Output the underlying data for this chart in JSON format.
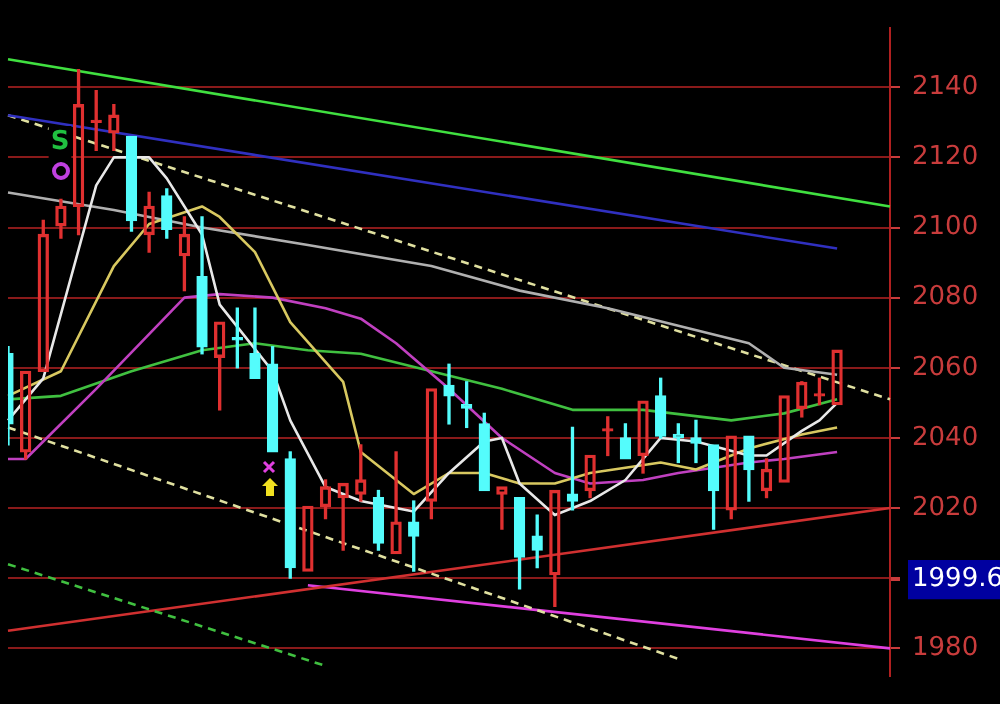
{
  "chart_data": {
    "type": "candlestick",
    "categories": [
      null,
      null,
      null,
      null,
      null,
      null,
      null,
      null,
      null,
      null,
      null,
      null,
      null,
      null,
      null,
      null,
      null,
      null,
      null,
      null,
      null,
      null,
      null,
      null,
      null,
      null,
      null,
      null,
      null,
      null,
      null,
      null,
      null,
      null,
      null,
      null,
      null,
      null,
      null,
      null,
      null,
      null,
      null,
      null,
      null,
      null,
      null,
      null,
      null,
      null,
      null
    ],
    "ohlc": [
      [
        2064,
        2066,
        2038,
        2044
      ],
      [
        2036,
        2059,
        2034,
        2059
      ],
      [
        2059,
        2102,
        2059,
        2098
      ],
      [
        2100.5,
        2108,
        2097,
        2106
      ],
      [
        2106,
        2145,
        2098,
        2135
      ],
      [
        2130,
        2139,
        2122,
        2130
      ],
      [
        2127,
        2135,
        2122,
        2132
      ],
      [
        2126,
        2126,
        2099,
        2102
      ],
      [
        2098,
        2110,
        2093,
        2106
      ],
      [
        2109,
        2111,
        2097,
        2099.5
      ],
      [
        2092,
        2103,
        2082,
        2098
      ],
      [
        2086,
        2103,
        2064,
        2066
      ],
      [
        2063,
        2073,
        2048,
        2073
      ],
      [
        2068,
        2077,
        2060,
        2068
      ],
      [
        2064,
        2077,
        2057,
        2057
      ],
      [
        2061,
        2066,
        2036,
        2036
      ],
      [
        2034,
        2036,
        2000,
        2003
      ],
      [
        2002,
        2020.5,
        2002,
        2020.5
      ],
      [
        2020.5,
        2028,
        2017,
        2026
      ],
      [
        2023,
        2027,
        2008,
        2027
      ],
      [
        2024,
        2038,
        2022,
        2028
      ],
      [
        2023,
        2025,
        2008,
        2010
      ],
      [
        2007,
        2036,
        2007,
        2016
      ],
      [
        2016,
        2022,
        2002,
        2012
      ],
      [
        2022,
        2054,
        2017,
        2054
      ],
      [
        2055,
        2061,
        2044,
        2052
      ],
      [
        2049.5,
        2056,
        2043,
        2048.5
      ],
      [
        2044,
        2047,
        2025,
        2025
      ],
      [
        2024,
        2026,
        2014,
        2026
      ],
      [
        2023,
        2023,
        1997,
        2006
      ],
      [
        2012,
        2018,
        2003,
        2008
      ],
      [
        2001,
        2025,
        1992,
        2025
      ],
      [
        2024,
        2043,
        2019.5,
        2022
      ],
      [
        2025,
        2035,
        2023,
        2035
      ],
      [
        2042,
        2046,
        2035,
        2042
      ],
      [
        2040,
        2044,
        2034,
        2034
      ],
      [
        2035,
        2050.5,
        2030,
        2050.5
      ],
      [
        2052,
        2057,
        2040,
        2040.5
      ],
      [
        2041,
        2044,
        2033,
        2040
      ],
      [
        2040,
        2045,
        2033,
        2038.5
      ],
      [
        2038,
        2038,
        2014,
        2025
      ],
      [
        2019.5,
        2040.5,
        2017,
        2040.5
      ],
      [
        2040.5,
        2040.5,
        2022,
        2031
      ],
      [
        2025,
        2034,
        2023,
        2031
      ],
      [
        2027.4,
        2052,
        2027.4,
        2052
      ],
      [
        2048.4,
        2056,
        2046,
        2055.8
      ],
      [
        2052,
        2057,
        2049.5,
        2052
      ],
      [
        2049.5,
        2065,
        2049.5,
        2065
      ],
      null,
      null,
      null
    ],
    "colors": [
      "#54fcfc",
      "#e03030",
      "#e03030",
      "#e03030",
      "#e03030",
      "#e03030",
      "#e03030",
      "#54fcfc",
      "#e03030",
      "#54fcfc",
      "#e03030",
      "#54fcfc",
      "#e03030",
      "#54fcfc",
      "#54fcfc",
      "#54fcfc",
      "#54fcfc",
      "#e03030",
      "#e03030",
      "#e03030",
      "#e03030",
      "#54fcfc",
      "#e03030",
      "#54fcfc",
      "#e03030",
      "#54fcfc",
      "#54fcfc",
      "#54fcfc",
      "#e03030",
      "#54fcfc",
      "#54fcfc",
      "#e03030",
      "#54fcfc",
      "#e03030",
      "#e03030",
      "#54fcfc",
      "#e03030",
      "#54fcfc",
      "#54fcfc",
      "#54fcfc",
      "#54fcfc",
      "#e03030",
      "#54fcfc",
      "#e03030",
      "#e03030",
      "#e03030",
      "#e03030",
      "#e03030",
      null,
      null,
      null
    ],
    "series": [
      {
        "type": "line",
        "color": "#e8e8e8",
        "values": [
          2045,
          null,
          2057,
          null,
          null,
          2112,
          2120,
          null,
          2120,
          2114,
          null,
          2098,
          2078,
          null,
          null,
          2059,
          2045,
          null,
          2026,
          null,
          2022,
          null,
          null,
          2019,
          null,
          2030,
          null,
          2039,
          2040,
          2027,
          null,
          2018,
          null,
          2022,
          null,
          2028,
          null,
          2040,
          null,
          2039,
          null,
          null,
          2035,
          2035,
          null,
          2042,
          2045,
          2050,
          null,
          null,
          null
        ]
      },
      {
        "type": "line",
        "color": "#d8c860",
        "values": [
          2052,
          null,
          null,
          2059,
          null,
          null,
          2089,
          null,
          2101,
          null,
          null,
          2106,
          2103,
          null,
          2093,
          null,
          2073,
          null,
          null,
          2056,
          2036,
          null,
          null,
          2024,
          null,
          2030,
          null,
          2030,
          null,
          2027,
          null,
          2027,
          null,
          2030,
          null,
          null,
          null,
          2033,
          null,
          2031,
          null,
          null,
          2037,
          null,
          null,
          2041,
          null,
          2043,
          null,
          null,
          null
        ]
      },
      {
        "type": "line",
        "color": "#c040c0",
        "values": [
          2034,
          2034,
          null,
          null,
          null,
          2054,
          null,
          null,
          null,
          null,
          2080,
          null,
          2081,
          null,
          null,
          2080,
          null,
          null,
          2077,
          null,
          2074,
          null,
          2067,
          null,
          null,
          2054,
          null,
          null,
          2040,
          null,
          null,
          2030,
          null,
          2027,
          null,
          null,
          2028,
          null,
          2030,
          null,
          null,
          null,
          2033,
          null,
          2034,
          null,
          null,
          2036,
          null,
          null,
          null
        ]
      },
      {
        "type": "line",
        "color": "#40c040",
        "values": [
          2051,
          null,
          null,
          2052,
          null,
          null,
          null,
          2059,
          null,
          null,
          null,
          2065,
          null,
          null,
          2067,
          null,
          null,
          2065,
          null,
          null,
          2064,
          null,
          null,
          null,
          2059,
          null,
          null,
          null,
          2054,
          null,
          null,
          null,
          2048,
          null,
          null,
          null,
          2048,
          null,
          null,
          null,
          null,
          2045,
          null,
          null,
          2047,
          null,
          null,
          2051,
          null,
          null,
          null
        ]
      },
      {
        "type": "line",
        "color": "#b0b0b0",
        "values": [
          2110,
          null,
          null,
          null,
          null,
          null,
          2105,
          null,
          null,
          null,
          null,
          2100,
          null,
          null,
          null,
          null,
          null,
          2095,
          null,
          null,
          null,
          null,
          null,
          null,
          2089,
          null,
          null,
          null,
          null,
          2082,
          null,
          null,
          null,
          null,
          2077,
          null,
          null,
          null,
          2072,
          null,
          null,
          null,
          2067,
          null,
          2060,
          null,
          null,
          2058,
          null,
          null,
          null
        ]
      },
      {
        "type": "line",
        "color": "#40e040",
        "values": [
          2148,
          null,
          null,
          null,
          null,
          null,
          null,
          null,
          null,
          null,
          null,
          null,
          null,
          null,
          null,
          null,
          null,
          null,
          null,
          null,
          null,
          null,
          null,
          null,
          null,
          null,
          null,
          null,
          null,
          null,
          null,
          null,
          null,
          null,
          null,
          null,
          null,
          null,
          null,
          null,
          null,
          null,
          null,
          null,
          null,
          null,
          null,
          null,
          null,
          null,
          2106
        ]
      },
      {
        "type": "line",
        "color": "#3030c0",
        "values": [
          2132,
          null,
          null,
          null,
          null,
          null,
          null,
          null,
          null,
          null,
          null,
          null,
          null,
          null,
          null,
          null,
          null,
          null,
          null,
          null,
          null,
          null,
          null,
          null,
          null,
          null,
          null,
          null,
          null,
          null,
          null,
          null,
          null,
          null,
          null,
          null,
          null,
          null,
          null,
          null,
          null,
          null,
          null,
          null,
          null,
          null,
          null,
          2094,
          null,
          null,
          null
        ]
      },
      {
        "type": "line",
        "color": "#e0e0a0",
        "line_style": "dashed",
        "values": [
          2132,
          null,
          null,
          null,
          null,
          null,
          null,
          null,
          null,
          null,
          null,
          null,
          null,
          null,
          null,
          null,
          null,
          null,
          null,
          null,
          null,
          null,
          null,
          null,
          null,
          null,
          null,
          null,
          null,
          null,
          null,
          null,
          null,
          null,
          null,
          null,
          null,
          null,
          null,
          null,
          null,
          null,
          null,
          null,
          null,
          null,
          null,
          null,
          null,
          null,
          2051
        ]
      },
      {
        "type": "line",
        "color": "#e0e0a0",
        "line_style": "dashed",
        "values": [
          2043,
          null,
          null,
          null,
          null,
          null,
          null,
          null,
          null,
          null,
          null,
          null,
          null,
          null,
          null,
          null,
          null,
          null,
          null,
          null,
          null,
          null,
          null,
          null,
          null,
          null,
          null,
          null,
          null,
          null,
          null,
          null,
          null,
          null,
          null,
          null,
          null,
          null,
          1977,
          null,
          null,
          null,
          null,
          null,
          null,
          null,
          null,
          null,
          null,
          null,
          null
        ]
      },
      {
        "type": "line",
        "color": "#40c040",
        "line_style": "dashed",
        "values": [
          2004,
          null,
          null,
          null,
          null,
          null,
          null,
          null,
          null,
          null,
          null,
          null,
          null,
          null,
          null,
          null,
          null,
          null,
          1975,
          null,
          null,
          null,
          null,
          null,
          null,
          null,
          null,
          null,
          null,
          null,
          null,
          null,
          null,
          null,
          null,
          null,
          null,
          null,
          null,
          null,
          null,
          null,
          null,
          null,
          null,
          null,
          null,
          null,
          null,
          null,
          null
        ]
      },
      {
        "type": "line",
        "color": "#d03030",
        "values": [
          1985,
          null,
          null,
          null,
          null,
          null,
          null,
          null,
          null,
          null,
          null,
          null,
          null,
          null,
          null,
          null,
          null,
          null,
          null,
          null,
          null,
          null,
          null,
          null,
          null,
          null,
          null,
          null,
          null,
          null,
          null,
          null,
          null,
          null,
          null,
          null,
          null,
          null,
          null,
          null,
          null,
          null,
          null,
          null,
          null,
          null,
          null,
          null,
          null,
          null,
          2020
        ]
      },
      {
        "type": "line",
        "color": "#e040e0",
        "values": [
          null,
          null,
          null,
          null,
          null,
          null,
          null,
          null,
          null,
          null,
          null,
          null,
          null,
          null,
          null,
          null,
          null,
          1998,
          null,
          null,
          null,
          null,
          null,
          null,
          null,
          null,
          null,
          null,
          null,
          null,
          null,
          null,
          null,
          null,
          null,
          null,
          null,
          null,
          null,
          null,
          null,
          null,
          null,
          null,
          null,
          null,
          null,
          null,
          null,
          null,
          1980
        ]
      }
    ],
    "ylim": [
      1972,
      2157
    ],
    "yticks": [
      1980,
      {
        "value": 1999.6,
        "label": "1999.6"
      },
      {
        "value": 2000,
        "label": null
      },
      2020,
      2040,
      2060,
      2080,
      2100,
      2120,
      2140
    ],
    "grid": "y",
    "legend": false,
    "tick_labels": "y",
    "annotations": [
      "S"
    ]
  }
}
